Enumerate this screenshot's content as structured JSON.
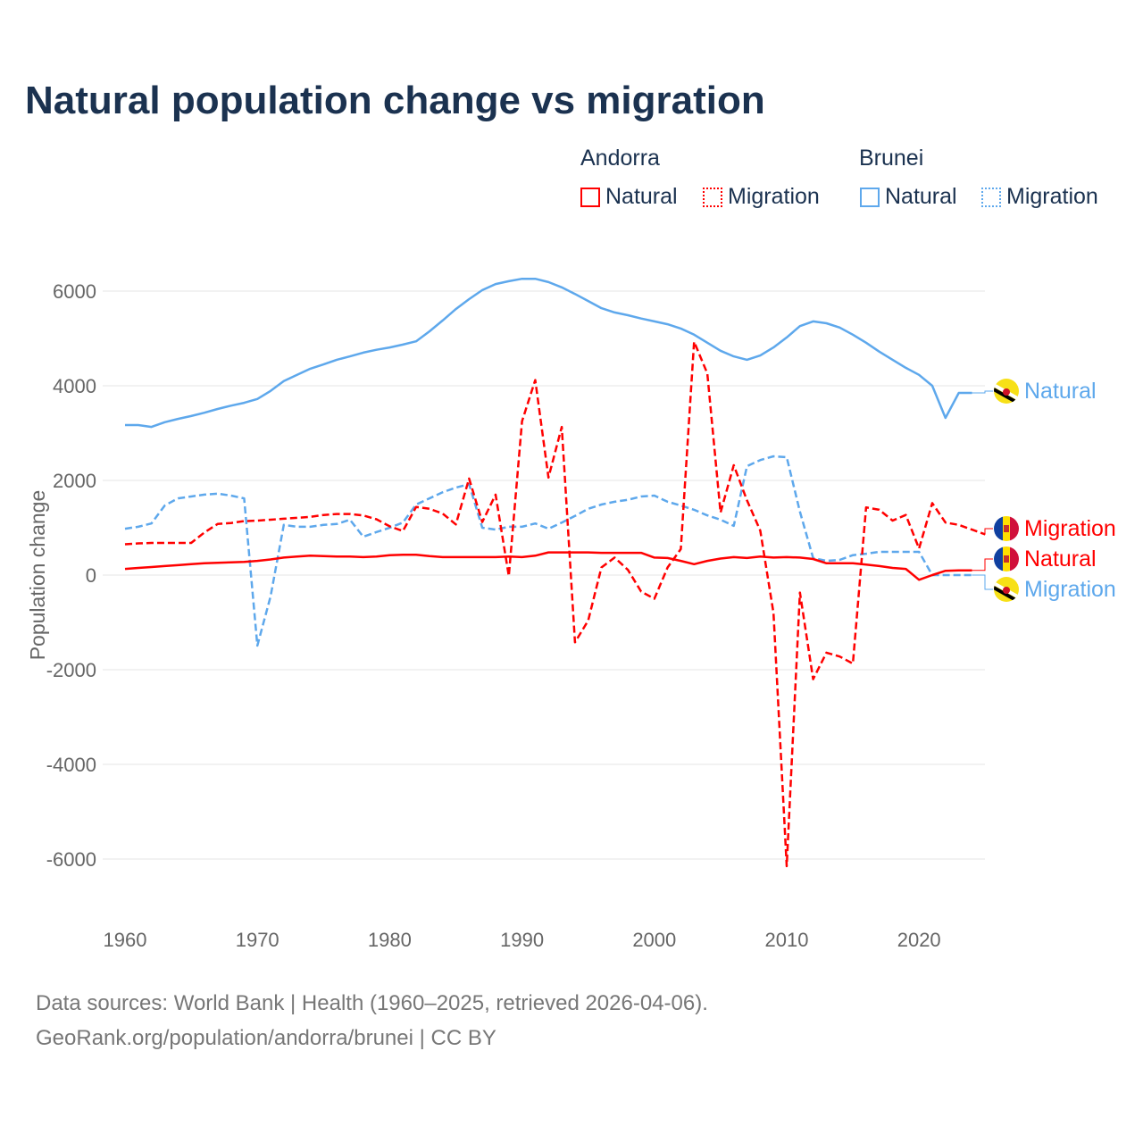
{
  "title": "Natural population change vs migration",
  "legend": {
    "groups": [
      {
        "name": "Andorra",
        "items": [
          "Natural",
          "Migration"
        ]
      },
      {
        "name": "Brunei",
        "items": [
          "Natural",
          "Migration"
        ]
      }
    ]
  },
  "footer": {
    "line1": "Data sources: World Bank | Health (1960–2025, retrieved 2026-04-06).",
    "line2": "GeoRank.org/population/andorra/brunei | CC BY"
  },
  "colors": {
    "andorra": "#ff0000",
    "brunei": "#5ea8ec",
    "title": "#1b3250",
    "grid": "#e6e6e6",
    "axis_text": "#666666"
  },
  "chart_data": {
    "type": "line",
    "title": "Natural population change vs migration",
    "xlabel": "",
    "ylabel": "Population change",
    "xlim": [
      1960,
      2025
    ],
    "ylim": [
      -7000,
      6500
    ],
    "xticks": [
      1960,
      1970,
      1980,
      1990,
      2000,
      2010,
      2020
    ],
    "yticks": [
      6000,
      4000,
      2000,
      0,
      -2000,
      -4000,
      -6000
    ],
    "grid": true,
    "legend_position": "top-right",
    "x_start": 1960,
    "series": [
      {
        "name": "Andorra Natural",
        "country": "Andorra",
        "kind": "Natural",
        "color": "#ff0000",
        "dashed": false,
        "end_label": "Natural",
        "values": [
          130,
          150,
          170,
          190,
          210,
          230,
          250,
          260,
          270,
          280,
          300,
          330,
          370,
          390,
          410,
          400,
          390,
          390,
          380,
          390,
          420,
          430,
          430,
          400,
          380,
          380,
          380,
          380,
          380,
          390,
          380,
          410,
          480,
          480,
          480,
          480,
          470,
          470,
          470,
          470,
          370,
          360,
          300,
          230,
          300,
          350,
          380,
          360,
          390,
          370,
          380,
          370,
          340,
          250,
          250,
          250,
          220,
          190,
          150,
          130,
          -100,
          0,
          90,
          100,
          100
        ]
      },
      {
        "name": "Andorra Migration",
        "country": "Andorra",
        "kind": "Migration",
        "color": "#ff0000",
        "dashed": true,
        "end_label": "Migration",
        "values": [
          650,
          670,
          680,
          680,
          680,
          680,
          900,
          1080,
          1100,
          1140,
          1150,
          1170,
          1190,
          1210,
          1230,
          1270,
          1290,
          1290,
          1260,
          1180,
          1030,
          930,
          1440,
          1400,
          1300,
          1070,
          2040,
          1120,
          1700,
          -20,
          3250,
          4120,
          2060,
          3130,
          -1420,
          -960,
          160,
          370,
          110,
          -350,
          -500,
          160,
          550,
          4930,
          4260,
          1320,
          2320,
          1580,
          940,
          -800,
          -6150,
          -370,
          -2200,
          -1640,
          -1720,
          -1870,
          1430,
          1380,
          1150,
          1270,
          560,
          1520,
          1110,
          1060,
          960,
          860
        ]
      },
      {
        "name": "Brunei Natural",
        "country": "Brunei",
        "kind": "Natural",
        "color": "#5ea8ec",
        "dashed": false,
        "end_label": "Natural",
        "values": [
          3170,
          3170,
          3130,
          3230,
          3300,
          3360,
          3430,
          3510,
          3580,
          3640,
          3720,
          3890,
          4100,
          4230,
          4360,
          4450,
          4550,
          4620,
          4700,
          4760,
          4810,
          4870,
          4940,
          5150,
          5380,
          5620,
          5830,
          6020,
          6150,
          6210,
          6260,
          6260,
          6190,
          6080,
          5940,
          5790,
          5640,
          5550,
          5490,
          5420,
          5360,
          5300,
          5210,
          5080,
          4910,
          4740,
          4620,
          4550,
          4640,
          4810,
          5020,
          5260,
          5360,
          5320,
          5230,
          5080,
          4910,
          4720,
          4550,
          4380,
          4230,
          4000,
          3320,
          3850,
          3850
        ]
      },
      {
        "name": "Brunei Migration",
        "country": "Brunei",
        "kind": "Migration",
        "color": "#5ea8ec",
        "dashed": true,
        "end_label": "Migration",
        "values": [
          980,
          1020,
          1090,
          1470,
          1620,
          1660,
          1700,
          1720,
          1680,
          1620,
          -1490,
          -450,
          1060,
          1020,
          1020,
          1060,
          1080,
          1170,
          810,
          910,
          1000,
          1110,
          1490,
          1620,
          1750,
          1850,
          1920,
          1000,
          960,
          1020,
          1020,
          1090,
          980,
          1110,
          1250,
          1400,
          1490,
          1550,
          1590,
          1660,
          1680,
          1550,
          1470,
          1380,
          1260,
          1170,
          1040,
          2300,
          2430,
          2510,
          2490,
          1340,
          360,
          300,
          320,
          420,
          450,
          490,
          490,
          490,
          490,
          0,
          0,
          0,
          0
        ]
      }
    ]
  }
}
